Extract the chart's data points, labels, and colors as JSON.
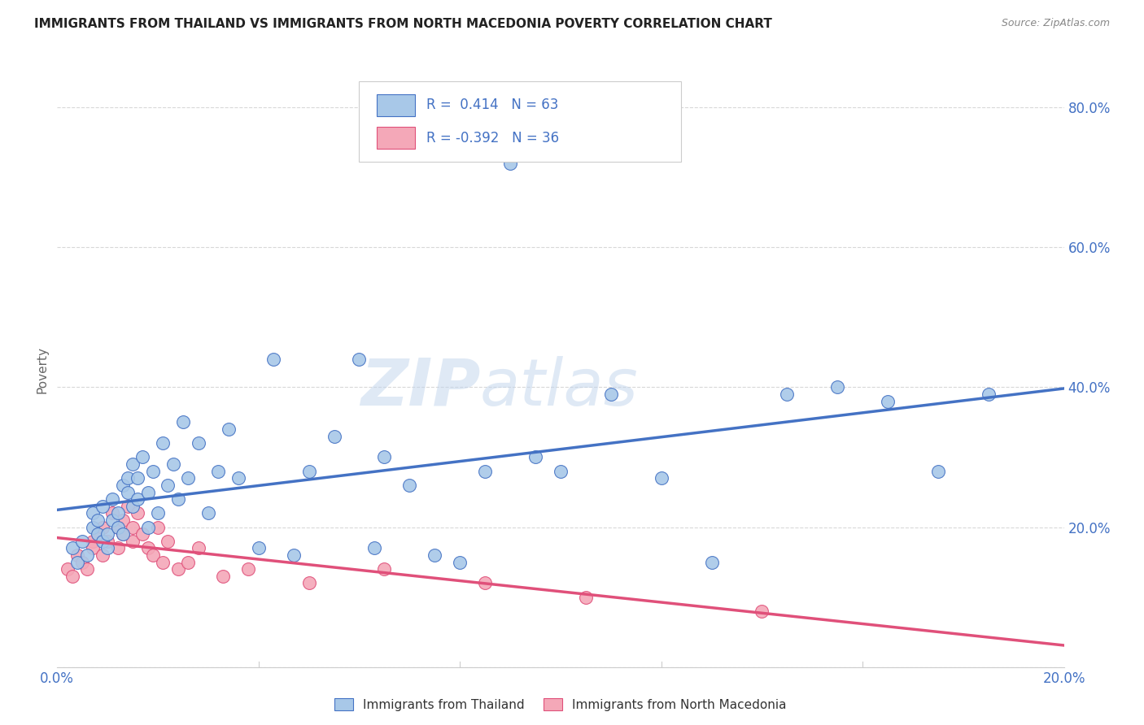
{
  "title": "IMMIGRANTS FROM THAILAND VS IMMIGRANTS FROM NORTH MACEDONIA POVERTY CORRELATION CHART",
  "source": "Source: ZipAtlas.com",
  "ylabel": "Poverty",
  "xlim": [
    0.0,
    0.2
  ],
  "ylim": [
    0.0,
    0.85
  ],
  "ytick_vals": [
    0.0,
    0.2,
    0.4,
    0.6,
    0.8
  ],
  "xtick_vals": [
    0.0,
    0.04,
    0.08,
    0.12,
    0.16,
    0.2
  ],
  "r_thailand": 0.414,
  "n_thailand": 63,
  "r_macedonia": -0.392,
  "n_macedonia": 36,
  "color_thailand": "#a8c8e8",
  "color_macedonia": "#f4a8b8",
  "line_color_thailand": "#4472c4",
  "line_color_macedonia": "#e0507a",
  "watermark_zip": "ZIP",
  "watermark_atlas": "atlas",
  "background_color": "#ffffff",
  "grid_color": "#d8d8d8",
  "title_color": "#222222",
  "source_color": "#888888",
  "axis_label_color": "#666666",
  "tick_color": "#4472c4",
  "legend_text_color": "#4472c4",
  "thailand_x": [
    0.003,
    0.004,
    0.005,
    0.006,
    0.007,
    0.007,
    0.008,
    0.008,
    0.009,
    0.009,
    0.01,
    0.01,
    0.011,
    0.011,
    0.012,
    0.012,
    0.013,
    0.013,
    0.014,
    0.014,
    0.015,
    0.015,
    0.016,
    0.016,
    0.017,
    0.018,
    0.018,
    0.019,
    0.02,
    0.021,
    0.022,
    0.023,
    0.024,
    0.025,
    0.026,
    0.028,
    0.03,
    0.032,
    0.034,
    0.036,
    0.04,
    0.043,
    0.047,
    0.05,
    0.055,
    0.06,
    0.063,
    0.065,
    0.07,
    0.075,
    0.08,
    0.085,
    0.09,
    0.095,
    0.1,
    0.11,
    0.12,
    0.13,
    0.145,
    0.155,
    0.165,
    0.175,
    0.185
  ],
  "thailand_y": [
    0.17,
    0.15,
    0.18,
    0.16,
    0.2,
    0.22,
    0.19,
    0.21,
    0.18,
    0.23,
    0.17,
    0.19,
    0.21,
    0.24,
    0.2,
    0.22,
    0.26,
    0.19,
    0.25,
    0.27,
    0.23,
    0.29,
    0.24,
    0.27,
    0.3,
    0.2,
    0.25,
    0.28,
    0.22,
    0.32,
    0.26,
    0.29,
    0.24,
    0.35,
    0.27,
    0.32,
    0.22,
    0.28,
    0.34,
    0.27,
    0.17,
    0.44,
    0.16,
    0.28,
    0.33,
    0.44,
    0.17,
    0.3,
    0.26,
    0.16,
    0.15,
    0.28,
    0.72,
    0.3,
    0.28,
    0.39,
    0.27,
    0.15,
    0.39,
    0.4,
    0.38,
    0.28,
    0.39
  ],
  "macedonia_x": [
    0.002,
    0.003,
    0.004,
    0.005,
    0.006,
    0.007,
    0.007,
    0.008,
    0.009,
    0.009,
    0.01,
    0.011,
    0.012,
    0.012,
    0.013,
    0.013,
    0.014,
    0.015,
    0.015,
    0.016,
    0.017,
    0.018,
    0.019,
    0.02,
    0.021,
    0.022,
    0.024,
    0.026,
    0.028,
    0.033,
    0.038,
    0.05,
    0.065,
    0.085,
    0.105,
    0.14
  ],
  "macedonia_y": [
    0.14,
    0.13,
    0.16,
    0.15,
    0.14,
    0.18,
    0.17,
    0.19,
    0.16,
    0.2,
    0.18,
    0.22,
    0.2,
    0.17,
    0.21,
    0.19,
    0.23,
    0.18,
    0.2,
    0.22,
    0.19,
    0.17,
    0.16,
    0.2,
    0.15,
    0.18,
    0.14,
    0.15,
    0.17,
    0.13,
    0.14,
    0.12,
    0.14,
    0.12,
    0.1,
    0.08
  ]
}
